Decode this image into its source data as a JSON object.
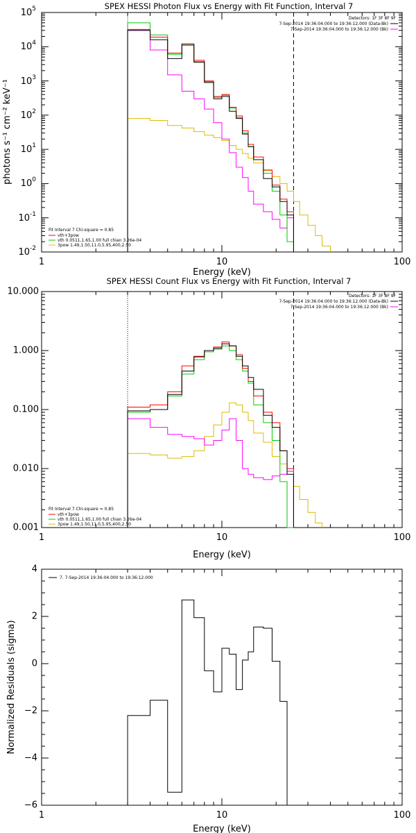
{
  "chart_data": [
    {
      "type": "step",
      "title": "SPEX HESSI Photon Flux vs Energy with Fit Function, Interval 7",
      "xlabel": "Energy (keV)",
      "ylabel": "photons s⁻¹ cm⁻² keV⁻¹",
      "xscale": "log",
      "yscale": "log",
      "xlim": [
        1,
        100
      ],
      "ylim": [
        0.01,
        100000
      ],
      "x_ticks": [
        {
          "v": 1,
          "label": "1"
        },
        {
          "v": 10,
          "label": "10"
        },
        {
          "v": 100,
          "label": "100"
        }
      ],
      "y_ticks": [
        {
          "v": 0.01,
          "base": "10",
          "exp": "-2"
        },
        {
          "v": 0.1,
          "base": "10",
          "exp": "-1"
        },
        {
          "v": 1,
          "base": "10",
          "exp": "0"
        },
        {
          "v": 10,
          "base": "10",
          "exp": "1"
        },
        {
          "v": 100,
          "base": "10",
          "exp": "2"
        },
        {
          "v": 1000,
          "base": "10",
          "exp": "3"
        },
        {
          "v": 10000,
          "base": "10",
          "exp": "4"
        },
        {
          "v": 100000,
          "base": "10",
          "exp": "5"
        }
      ],
      "legend_tr": {
        "header": "Detectors: 1F 3F 8F 9F",
        "lines": [
          {
            "text": "7-Sep-2014 19:36:04.000 to 19:36:12.000 (Data-Bk)",
            "color": "#000000"
          },
          {
            "text": "7-Sep-2014 19:36:04.000 to 19:36:12.000 (Bk)",
            "color": "#ff00ff"
          }
        ]
      },
      "legend_bl": {
        "header": "Fit Interval 7   Chi-square = 0.85",
        "lines": [
          {
            "text": "vth+3pow",
            "color": "#ff0000"
          },
          {
            "text": "vth 0.0511,1.65,1.00  full chian 3.26e-04",
            "color": "#00cc00"
          },
          {
            "text": "3pow 1.49,1.50,11.0,5.95,400,2.50",
            "color": "#ddbb00"
          }
        ]
      },
      "vlines": [
        {
          "x": 3,
          "style": "dotted"
        },
        {
          "x": 25,
          "style": "dashed"
        }
      ],
      "edges": [
        3,
        4,
        5,
        6,
        7,
        8,
        9,
        10,
        11,
        12,
        13,
        14,
        15,
        17,
        19,
        21,
        23,
        25,
        27,
        30,
        33,
        36,
        40
      ],
      "series": [
        {
          "name": "Data-Bk",
          "color": "#000000",
          "values": [
            30000,
            16000,
            4500,
            12000,
            3500,
            900,
            300,
            350,
            130,
            80,
            28,
            12,
            5,
            1.4,
            0.8,
            0.3,
            0.12
          ]
        },
        {
          "name": "vth+3pow",
          "color": "#ff0000",
          "values": [
            32000,
            19000,
            6500,
            11000,
            4000,
            1000,
            350,
            400,
            170,
            95,
            35,
            14,
            6,
            2.5,
            0.9,
            0.35,
            0.15
          ]
        },
        {
          "name": "vth",
          "color": "#00cc00",
          "values": [
            50000,
            22000,
            6000,
            11000,
            3700,
            950,
            330,
            380,
            160,
            85,
            30,
            12,
            5,
            2,
            0.6,
            0.12,
            0.02
          ]
        },
        {
          "name": "3pow",
          "color": "#ddbb00",
          "values": [
            80,
            70,
            50,
            42,
            33,
            26,
            22,
            18,
            13,
            10,
            7.5,
            5.5,
            4,
            2.4,
            1.6,
            1,
            0.6,
            0.3,
            0.12,
            0.06,
            0.03,
            0.015
          ]
        },
        {
          "name": "Bk",
          "color": "#ff00ff",
          "values": [
            30000,
            8000,
            1500,
            500,
            300,
            150,
            60,
            20,
            8,
            3,
            1.5,
            0.6,
            0.25,
            0.15,
            0.09,
            0.05,
            0.1
          ]
        }
      ]
    },
    {
      "type": "step",
      "title": "SPEX HESSI Count Flux vs Energy with Fit Function, Interval 7",
      "xlabel": "Energy (keV)",
      "ylabel": "",
      "xscale": "log",
      "yscale": "log",
      "xlim": [
        1,
        100
      ],
      "ylim": [
        0.001,
        10
      ],
      "x_ticks": [
        {
          "v": 1,
          "label": "1"
        },
        {
          "v": 10,
          "label": "10"
        },
        {
          "v": 100,
          "label": "100"
        }
      ],
      "y_ticks": [
        {
          "v": 0.001,
          "label": "0.001"
        },
        {
          "v": 0.01,
          "label": "0.010"
        },
        {
          "v": 0.1,
          "label": "0.100"
        },
        {
          "v": 1,
          "label": "1.000"
        },
        {
          "v": 10,
          "label": "10.000"
        }
      ],
      "legend_tr": {
        "header": "Detectors: 1F 3F 8F 9F",
        "lines": [
          {
            "text": "7-Sep-2014 19:36:04.000 to 19:36:12.000 (Data-Bk)",
            "color": "#000000"
          },
          {
            "text": "7-Sep-2014 19:36:04.000 to 19:36:12.000 (Bk)",
            "color": "#ff00ff"
          }
        ]
      },
      "legend_bl": {
        "header": "Fit Interval 7   Chi-square = 0.85",
        "lines": [
          {
            "text": "vth+3pow",
            "color": "#ff0000"
          },
          {
            "text": "vth 0.0511,1.65,1.00  full chian 3.26e-04",
            "color": "#00cc00"
          },
          {
            "text": "3pow 1.49,1.50,11.0,5.95,400,2.50",
            "color": "#ddbb00"
          }
        ]
      },
      "vlines": [
        {
          "x": 3,
          "style": "dotted"
        },
        {
          "x": 25,
          "style": "dashed"
        }
      ],
      "edges": [
        3,
        4,
        5,
        6,
        7,
        8,
        9,
        10,
        11,
        12,
        13,
        14,
        15,
        17,
        19,
        21,
        23,
        25,
        27,
        30,
        33,
        36,
        40
      ],
      "series": [
        {
          "name": "Data-Bk",
          "color": "#000000",
          "values": [
            0.095,
            0.1,
            0.18,
            0.45,
            0.78,
            1.0,
            1.1,
            1.3,
            1.2,
            0.8,
            0.55,
            0.35,
            0.22,
            0.08,
            0.05,
            0.02,
            0.008
          ]
        },
        {
          "name": "vth+3pow",
          "color": "#ff0000",
          "values": [
            0.11,
            0.12,
            0.2,
            0.55,
            0.8,
            1.0,
            1.15,
            1.4,
            1.2,
            0.85,
            0.5,
            0.3,
            0.17,
            0.09,
            0.06,
            0.02,
            0.01
          ]
        },
        {
          "name": "vth",
          "color": "#00cc00",
          "values": [
            0.09,
            0.1,
            0.17,
            0.4,
            0.7,
            0.95,
            1.05,
            1.2,
            1.0,
            0.7,
            0.45,
            0.28,
            0.12,
            0.06,
            0.03,
            0.006,
            0.001
          ]
        },
        {
          "name": "3pow",
          "color": "#ddbb00",
          "values": [
            0.018,
            0.017,
            0.015,
            0.016,
            0.02,
            0.035,
            0.055,
            0.09,
            0.13,
            0.12,
            0.09,
            0.065,
            0.04,
            0.028,
            0.016,
            0.012,
            0.009,
            0.005,
            0.003,
            0.0018,
            0.0012
          ]
        },
        {
          "name": "Bk",
          "color": "#ff00ff",
          "values": [
            0.07,
            0.05,
            0.038,
            0.035,
            0.032,
            0.025,
            0.03,
            0.045,
            0.07,
            0.03,
            0.01,
            0.008,
            0.007,
            0.0065,
            0.0075,
            0.008,
            0.009
          ]
        }
      ]
    },
    {
      "type": "step",
      "title": "",
      "xlabel": "Energy (keV)",
      "ylabel": "Normalized Residuals (sigma)",
      "xscale": "log",
      "yscale": "linear",
      "xlim": [
        1,
        100
      ],
      "ylim": [
        -6,
        4
      ],
      "x_ticks": [
        {
          "v": 1,
          "label": "1"
        },
        {
          "v": 10,
          "label": "10"
        },
        {
          "v": 100,
          "label": "100"
        }
      ],
      "y_ticks": [
        {
          "v": -6,
          "label": "−6"
        },
        {
          "v": -4,
          "label": "−4"
        },
        {
          "v": -2,
          "label": "−2"
        },
        {
          "v": 0,
          "label": "0"
        },
        {
          "v": 2,
          "label": "2"
        },
        {
          "v": 4,
          "label": "4"
        }
      ],
      "legend_tl": {
        "lines": [
          {
            "text": "7.  7-Sep-2014 19:36:04.000 to 19:36:12.000",
            "color": "#000000"
          }
        ]
      },
      "edges": [
        3,
        4,
        5,
        6,
        7,
        8,
        9,
        10,
        11,
        12,
        13,
        14,
        15,
        17,
        19,
        21,
        23,
        25
      ],
      "series": [
        {
          "name": "7",
          "color": "#000000",
          "values": [
            -2.2,
            -1.55,
            -5.45,
            2.7,
            1.95,
            -0.3,
            -1.2,
            0.65,
            0.4,
            -1.1,
            0.15,
            0.5,
            1.55,
            1.5,
            0.1,
            -1.6
          ]
        }
      ]
    }
  ]
}
